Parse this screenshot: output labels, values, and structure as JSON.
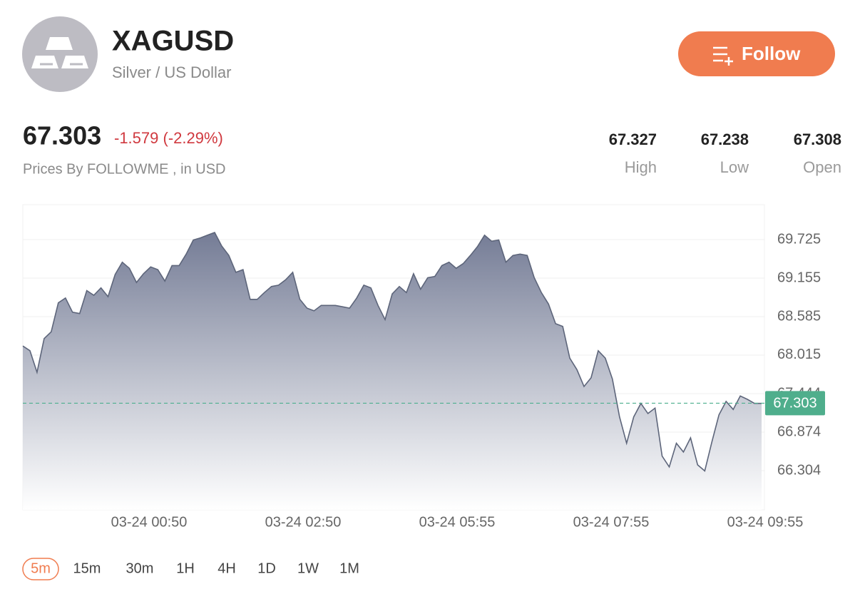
{
  "header": {
    "title": "XAGUSD",
    "subtitle": "Silver / US Dollar",
    "button": "Follow"
  },
  "quote": {
    "price": 67.303,
    "change": "-1.579 (-2.29%)",
    "source": "Prices By FOLLOWME , in USD"
  },
  "stats": [
    {
      "value": 67.327,
      "label": "High"
    },
    {
      "value": 67.238,
      "label": "Low"
    },
    {
      "value": 67.308,
      "label": "Open"
    }
  ],
  "chart_data": {
    "type": "area",
    "values": [
      68.15,
      68.08,
      67.76,
      68.26,
      68.36,
      68.79,
      68.86,
      68.65,
      68.63,
      68.97,
      68.9,
      69.01,
      68.88,
      69.21,
      69.39,
      69.3,
      69.09,
      69.22,
      69.32,
      69.28,
      69.11,
      69.34,
      69.34,
      69.51,
      69.72,
      69.75,
      69.79,
      69.83,
      69.63,
      69.49,
      69.24,
      69.28,
      68.84,
      68.84,
      68.94,
      69.03,
      69.05,
      69.13,
      69.24,
      68.84,
      68.71,
      68.67,
      68.75,
      68.75,
      68.75,
      68.73,
      68.71,
      68.86,
      69.05,
      69.01,
      68.75,
      68.54,
      68.92,
      69.03,
      68.94,
      69.22,
      68.99,
      69.16,
      69.18,
      69.34,
      69.39,
      69.3,
      69.37,
      69.49,
      69.62,
      69.79,
      69.7,
      69.72,
      69.39,
      69.49,
      69.51,
      69.49,
      69.16,
      68.94,
      68.77,
      68.48,
      68.44,
      67.97,
      67.8,
      67.55,
      67.68,
      68.08,
      67.97,
      67.66,
      67.1,
      66.71,
      67.1,
      67.3,
      67.15,
      67.23,
      66.52,
      66.36,
      66.71,
      66.58,
      66.79,
      66.39,
      66.3,
      66.73,
      67.13,
      67.33,
      67.21,
      67.41,
      67.36,
      67.3,
      67.3
    ],
    "color": "#5d657a",
    "ylim": [
      65.724,
      70.242
    ],
    "yticks": [
      66.304,
      66.874,
      67.444,
      68.015,
      68.585,
      69.155,
      69.725
    ],
    "x_tick_labels": [
      "03-24 00:50",
      "03-24 02:50",
      "03-24 05:55",
      "03-24 07:55",
      "03-24 09:55"
    ],
    "grid": true
  },
  "timeframes": {
    "options": [
      "5m",
      "15m",
      "30m",
      "1H",
      "4H",
      "1D",
      "1W",
      "1M"
    ],
    "active_index": 0
  }
}
